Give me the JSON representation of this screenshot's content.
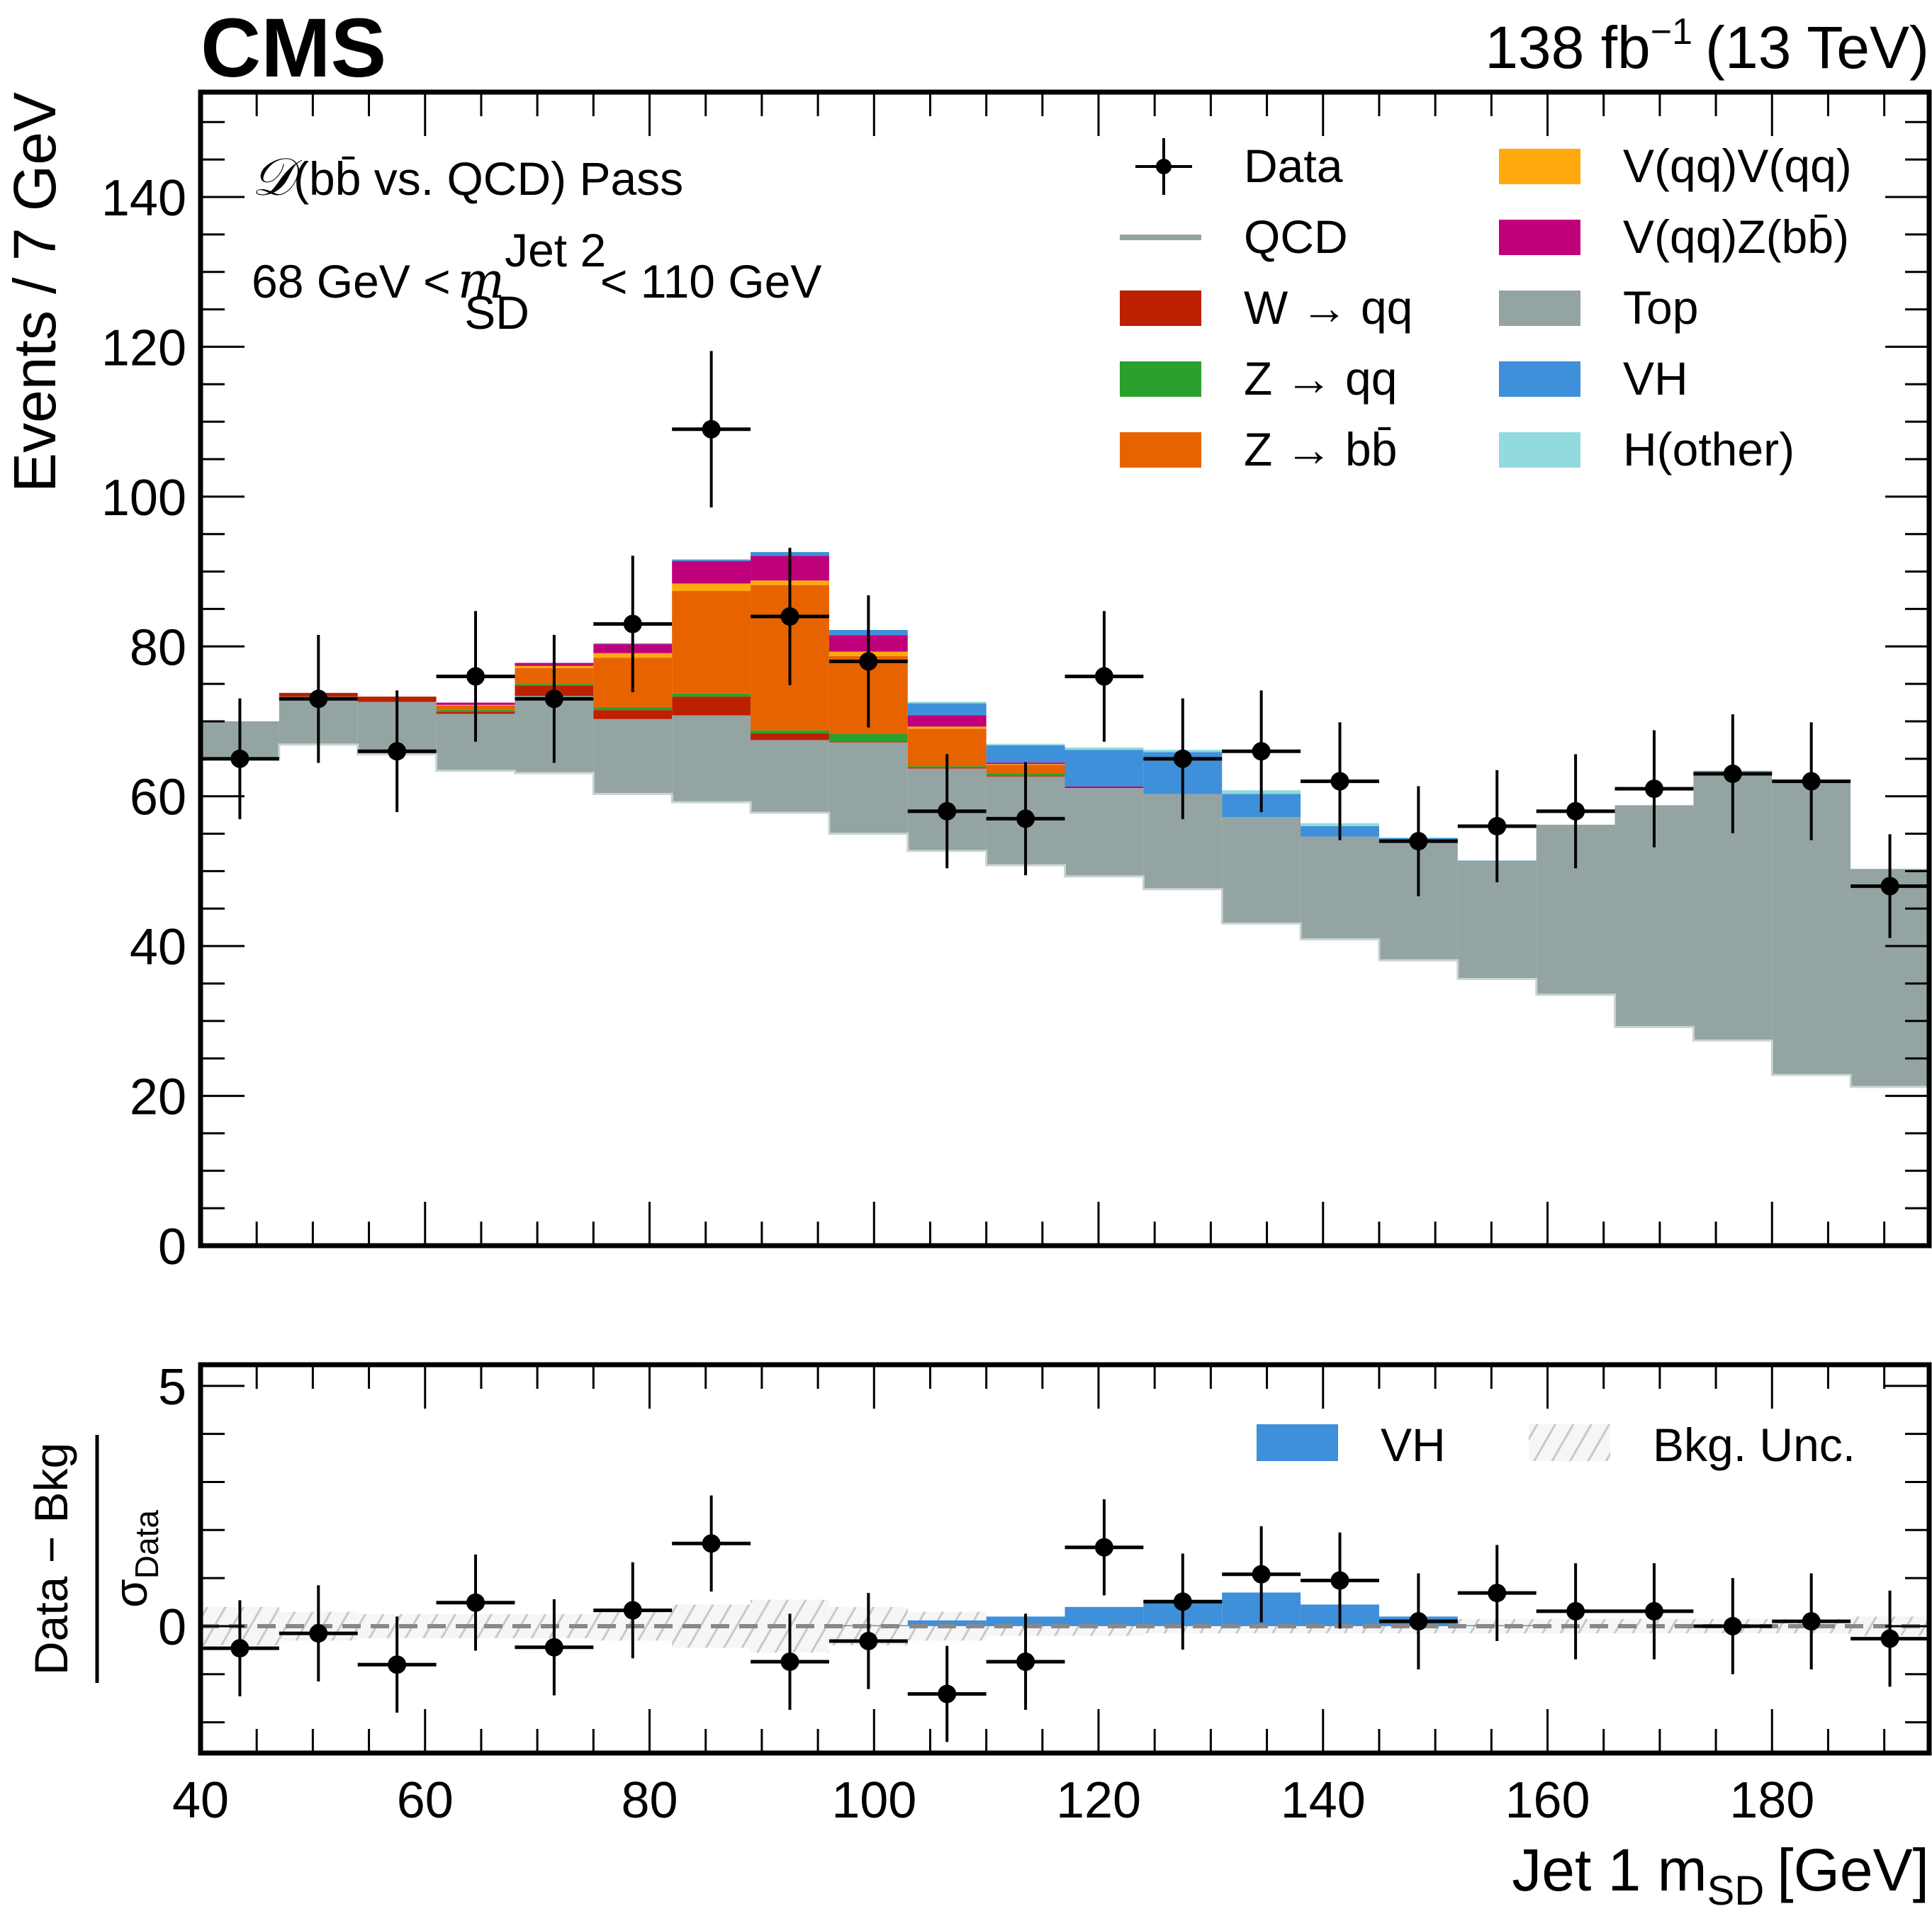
{
  "header": {
    "experiment": "CMS",
    "luminosity": "138 fb",
    "lumi_exponent": "−1",
    "energy": "(13 TeV)"
  },
  "annotations": {
    "region_prefix": "𝒟",
    "region_text": "(bb̄ vs. QCD) Pass",
    "mass_window_left": "68 GeV <",
    "mass_var": "m",
    "mass_sup": "Jet 2",
    "mass_sub": "SD",
    "mass_window_right": "< 110 GeV"
  },
  "colors": {
    "data": "#000000",
    "QCD": "#94a4a2",
    "W": "#bd1f01",
    "Zqq": "#2ca02c",
    "Zbb": "#e76300",
    "VV": "#ffa90e",
    "VZbb": "#c0007a",
    "Top": "#94a4a2",
    "VH": "#3f90da",
    "Hother": "#92dadd",
    "unc_hatch": "#c8c8c8",
    "zero_line": "#888888"
  },
  "chart_data": [
    {
      "type": "bar",
      "stacked": true,
      "title": "",
      "xlabel": "Jet 1 m_SD [GeV]",
      "xlabel_main": "Jet 1 m",
      "xlabel_sub": "SD",
      "xlabel_unit": "[GeV]",
      "ylabel": "Events / 7 GeV",
      "xlim": [
        40,
        194
      ],
      "ylim": [
        0,
        154
      ],
      "xticks": [
        40,
        60,
        80,
        100,
        120,
        140,
        160,
        180
      ],
      "yticks": [
        0,
        20,
        40,
        60,
        80,
        100,
        120,
        140
      ],
      "bin_edges": [
        40,
        47,
        54,
        61,
        68,
        75,
        82,
        89,
        96,
        103,
        110,
        117,
        124,
        131,
        138,
        145,
        152,
        159,
        166,
        173,
        180,
        187,
        194
      ],
      "legend": {
        "placement": "top-right",
        "entries": [
          {
            "key": "Data",
            "label": "Data",
            "style": "marker"
          },
          {
            "key": "QCD",
            "label": "QCD",
            "style": "line"
          },
          {
            "key": "W",
            "label": "W → qq",
            "style": "fill"
          },
          {
            "key": "Zqq",
            "label": "Z → qq",
            "style": "fill"
          },
          {
            "key": "Zbb",
            "label": "Z → bb̄",
            "style": "fill"
          },
          {
            "key": "VV",
            "label": "V(qq)V(qq)",
            "style": "fill"
          },
          {
            "key": "VZbb",
            "label": "V(qq)Z(bb̄)",
            "style": "fill"
          },
          {
            "key": "Top",
            "label": "Top",
            "style": "fill"
          },
          {
            "key": "VH",
            "label": "VH",
            "style": "fill"
          },
          {
            "key": "Hother",
            "label": "H(other)",
            "style": "fill"
          }
        ]
      },
      "series": [
        {
          "name": "QCD",
          "values": [
            65.1,
            66.9,
            65.6,
            63.4,
            63.1,
            60.3,
            59.2,
            57.8,
            55.0,
            52.7,
            50.8,
            49.3,
            47.6,
            43.0,
            40.9,
            38.1,
            35.6,
            33.5,
            29.2,
            27.4,
            22.8,
            21.2
          ]
        },
        {
          "name": "Top",
          "values": [
            4.9,
            6.4,
            7.0,
            7.6,
            10.3,
            10.0,
            11.6,
            9.7,
            12.2,
            11.0,
            11.8,
            11.8,
            12.7,
            14.2,
            13.7,
            15.8,
            15.7,
            22.7,
            29.6,
            36.0,
            39.0,
            29.1
          ]
        },
        {
          "name": "W",
          "values": [
            0.0,
            0.5,
            0.7,
            0.3,
            1.4,
            1.2,
            2.5,
            0.9,
            0.1,
            0.1,
            0.1,
            0.0,
            0.0,
            0.0,
            0.0,
            0.0,
            0.0,
            0.0,
            0.0,
            0.0,
            0.0,
            0.0
          ]
        },
        {
          "name": "Zqq",
          "values": [
            0.0,
            0.0,
            0.0,
            0.2,
            0.2,
            0.4,
            0.4,
            0.4,
            1.0,
            0.2,
            0.3,
            0.0,
            0.0,
            0.0,
            0.0,
            0.0,
            0.0,
            0.0,
            0.0,
            0.0,
            0.0,
            0.0
          ]
        },
        {
          "name": "Zbb",
          "values": [
            0.0,
            0.0,
            0.0,
            0.6,
            2.1,
            6.6,
            13.7,
            19.4,
            10.4,
            5.0,
            1.2,
            0.0,
            0.0,
            0.0,
            0.0,
            0.0,
            0.0,
            0.0,
            0.0,
            0.0,
            0.0,
            0.0
          ]
        },
        {
          "name": "VV",
          "values": [
            0.0,
            0.0,
            0.0,
            0.1,
            0.3,
            0.6,
            1.0,
            0.6,
            0.6,
            0.3,
            0.1,
            0.0,
            0.0,
            0.0,
            0.0,
            0.0,
            0.0,
            0.0,
            0.0,
            0.0,
            0.0,
            0.0
          ]
        },
        {
          "name": "VZbb",
          "values": [
            0.0,
            0.0,
            0.0,
            0.3,
            0.4,
            1.2,
            3.0,
            3.3,
            2.2,
            1.5,
            0.2,
            0.2,
            0.0,
            0.0,
            0.0,
            0.0,
            0.0,
            0.0,
            0.0,
            0.0,
            0.0,
            0.0
          ]
        },
        {
          "name": "VH",
          "values": [
            0.0,
            0.0,
            0.0,
            0.0,
            0.0,
            0.1,
            0.2,
            0.5,
            0.7,
            1.6,
            2.3,
            4.9,
            5.6,
            3.1,
            1.4,
            0.5,
            0.1,
            0.0,
            0.0,
            0.0,
            0.0,
            0.0
          ]
        },
        {
          "name": "Hother",
          "values": [
            0.0,
            0.0,
            0.0,
            0.0,
            0.0,
            0.0,
            0.0,
            0.0,
            0.0,
            0.2,
            0.2,
            0.3,
            0.3,
            0.5,
            0.4,
            0.1,
            0.0,
            0.0,
            0.0,
            0.0,
            0.0,
            0.0
          ]
        }
      ],
      "data_points": {
        "x": [
          43.5,
          50.5,
          57.5,
          64.5,
          71.5,
          78.5,
          85.5,
          92.5,
          99.5,
          106.5,
          113.5,
          120.5,
          127.5,
          134.5,
          141.5,
          148.5,
          155.5,
          162.5,
          169.5,
          176.5,
          183.5,
          190.5
        ],
        "y": [
          65,
          73,
          66,
          76,
          73,
          83,
          109,
          84,
          78,
          58,
          57,
          76,
          65,
          66,
          62,
          54,
          56,
          58,
          61,
          63,
          62,
          48
        ]
      }
    },
    {
      "type": "bar",
      "title": "",
      "xlabel": "Jet 1 m_SD [GeV]",
      "ylabel": "(Data − Bkg) / σ_Data",
      "ylabel_numerator": "Data − Bkg",
      "ylabel_denominator_symbol": "σ",
      "ylabel_denominator_sub": "Data",
      "xlim": [
        40,
        194
      ],
      "ylim": [
        -2.64,
        5.44
      ],
      "yticks": [
        0,
        5
      ],
      "xticks": [
        40,
        60,
        80,
        100,
        120,
        140,
        160,
        180
      ],
      "bin_edges": [
        40,
        47,
        54,
        61,
        68,
        75,
        82,
        89,
        96,
        103,
        110,
        117,
        124,
        131,
        138,
        145,
        152,
        159,
        166,
        173,
        180,
        187,
        194
      ],
      "legend": {
        "placement": "top-right",
        "entries": [
          {
            "key": "VH",
            "label": "VH",
            "style": "fill"
          },
          {
            "key": "unc",
            "label": "Bkg. Unc.",
            "style": "hatch"
          }
        ]
      },
      "series": [
        {
          "name": "VH",
          "values": [
            0.0,
            0.0,
            0.0,
            0.0,
            0.0,
            0.0,
            0.0,
            0.0,
            0.02,
            0.12,
            0.2,
            0.4,
            0.55,
            0.7,
            0.45,
            0.2,
            0.02,
            0.0,
            0.0,
            0.0,
            0.0,
            0.0
          ]
        },
        {
          "name": "Bkg. Unc.",
          "values": [
            0.4,
            0.3,
            0.25,
            0.25,
            0.25,
            0.3,
            0.45,
            0.55,
            0.4,
            0.3,
            0.2,
            0.2,
            0.15,
            0.15,
            0.15,
            0.15,
            0.15,
            0.15,
            0.15,
            0.15,
            0.15,
            0.2
          ]
        }
      ],
      "data_points": {
        "x": [
          43.5,
          50.5,
          57.5,
          64.5,
          71.5,
          78.5,
          85.5,
          92.5,
          99.5,
          106.5,
          113.5,
          120.5,
          127.5,
          134.5,
          141.5,
          148.5,
          155.5,
          162.5,
          169.5,
          176.5,
          183.5,
          190.5
        ],
        "y": [
          -0.46,
          -0.15,
          -0.8,
          0.49,
          -0.44,
          0.33,
          1.72,
          -0.74,
          -0.31,
          -1.41,
          -0.74,
          1.64,
          0.51,
          1.08,
          0.95,
          0.1,
          0.69,
          0.31,
          0.31,
          0.0,
          0.1,
          -0.26
        ],
        "yerr": 1.0
      }
    }
  ]
}
